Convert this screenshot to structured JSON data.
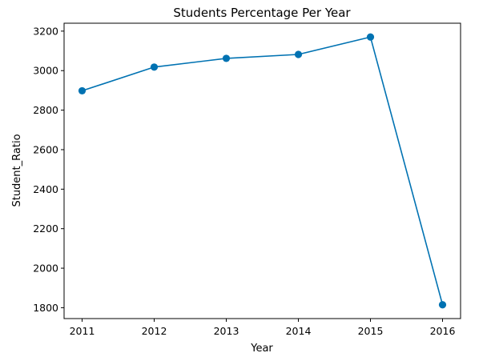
{
  "chart_data": {
    "type": "line",
    "title": "Students Percentage Per Year",
    "xlabel": "Year",
    "ylabel": "Student_Ratio",
    "x": [
      "2011",
      "2012",
      "2013",
      "2014",
      "2015",
      "2016"
    ],
    "series": [
      {
        "values": [
          2898,
          3018,
          3062,
          3082,
          3170,
          1815
        ]
      }
    ],
    "ylim": [
      1745,
      3240
    ],
    "yticks": [
      1800,
      2000,
      2200,
      2400,
      2600,
      2800,
      3000,
      3200
    ],
    "grid": false,
    "legend": "none",
    "colors": {
      "line": "#0072b2",
      "marker": "#0072b2"
    }
  }
}
